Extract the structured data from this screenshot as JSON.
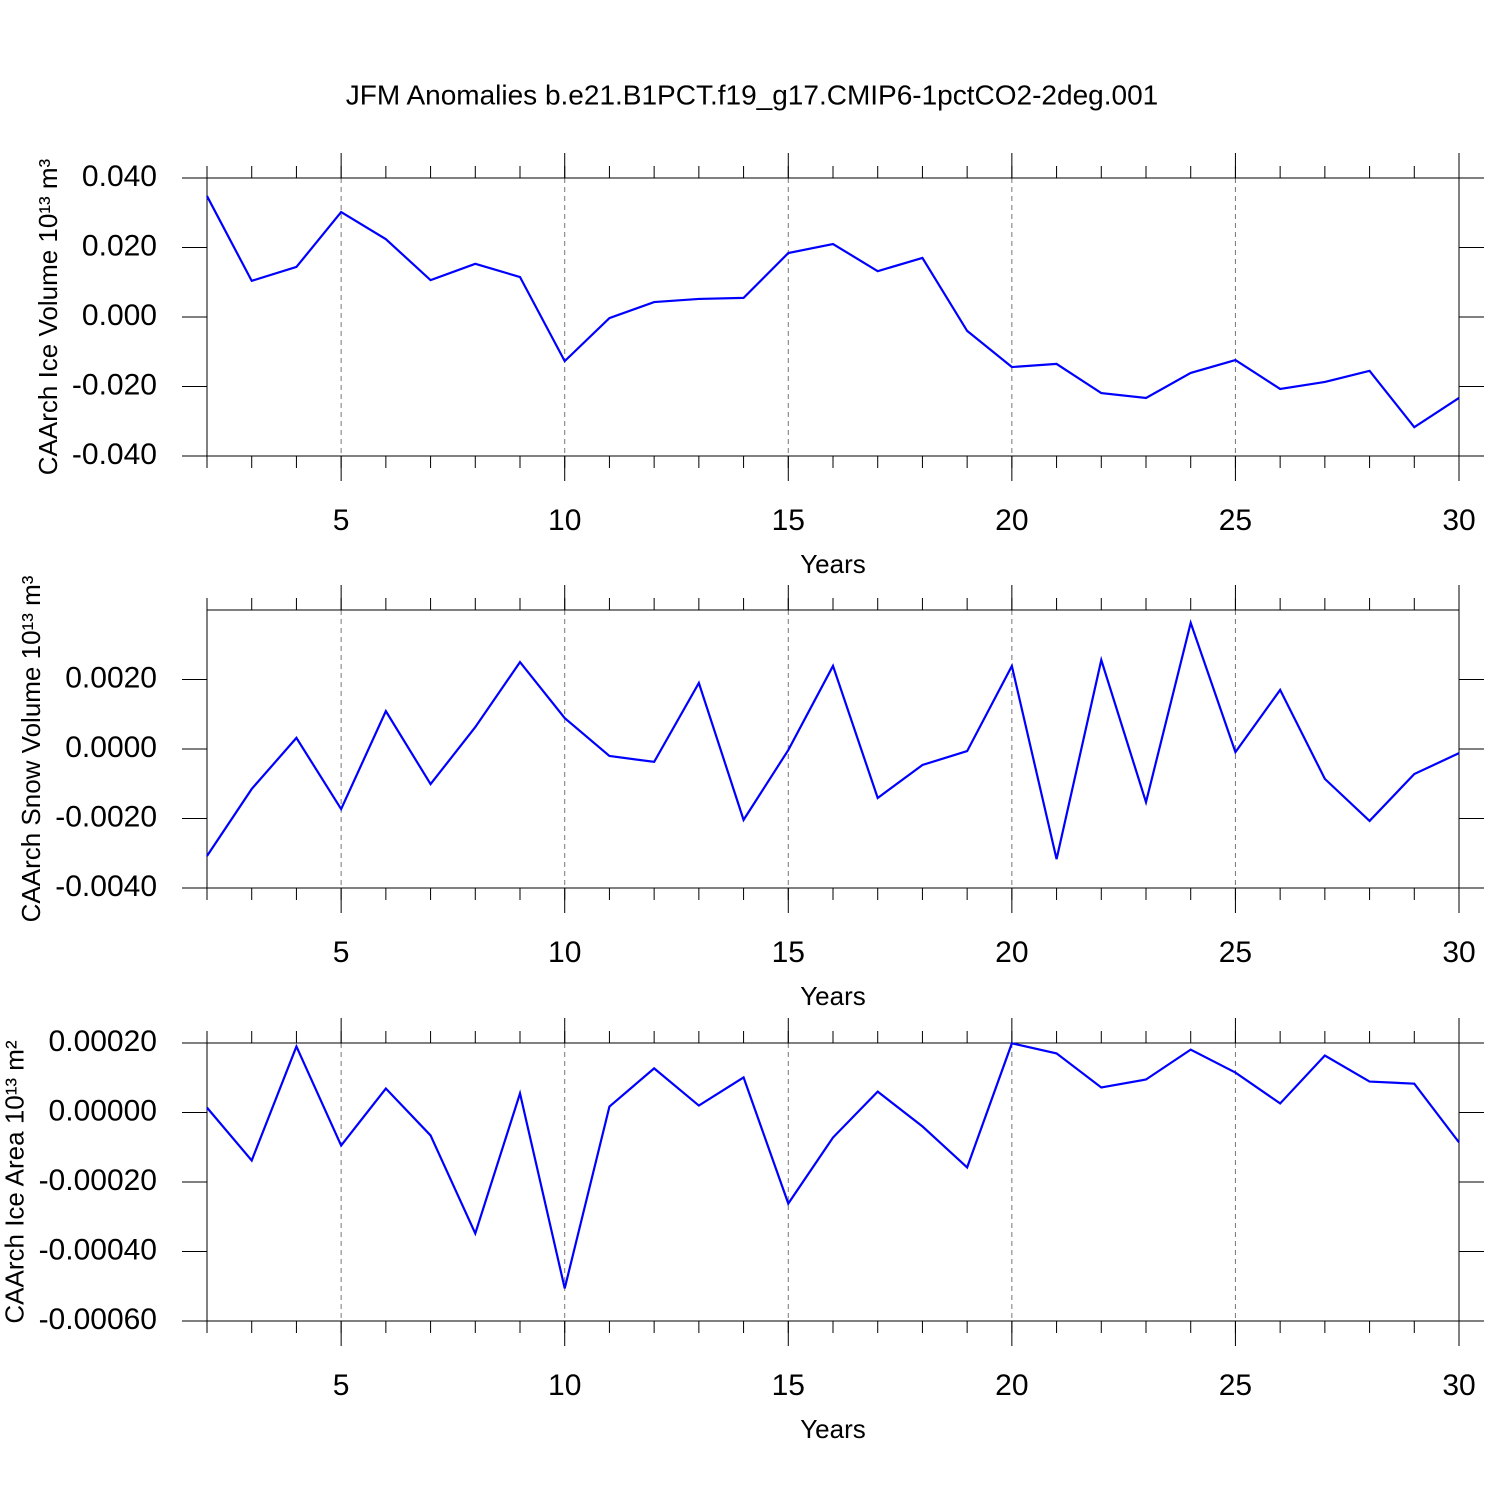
{
  "chart_data": [
    {
      "type": "line",
      "title": "JFM Anomalies b.e21.B1PCT.f19_g17.CMIP6-1pctCO2-2deg.001",
      "xlabel": "Years",
      "ylabel": "CAArch Ice Volume 10¹³ m³",
      "color": "#0000ff",
      "x": [
        2,
        3,
        4,
        5,
        6,
        7,
        8,
        9,
        10,
        11,
        12,
        13,
        14,
        15,
        16,
        17,
        18,
        19,
        20,
        21,
        22,
        23,
        24,
        25,
        26,
        27,
        28,
        29,
        30
      ],
      "values": [
        0.0348,
        0.0104,
        0.0144,
        0.0302,
        0.0224,
        0.0106,
        0.0153,
        0.0115,
        -0.0127,
        -0.0003,
        0.0043,
        0.0052,
        0.0055,
        0.0184,
        0.021,
        0.0132,
        0.017,
        -0.004,
        -0.0144,
        -0.0135,
        -0.0219,
        -0.0233,
        -0.0161,
        -0.0124,
        -0.0207,
        -0.0187,
        -0.0155,
        -0.0317,
        -0.0233
      ],
      "xlim": [
        2,
        30
      ],
      "xticks": [
        5,
        10,
        15,
        20,
        25,
        30
      ],
      "ylim": [
        -0.04,
        0.04
      ],
      "yticks": [
        {
          "value": -0.04,
          "label": "-0.040"
        },
        {
          "value": -0.02,
          "label": "-0.020"
        },
        {
          "value": 0,
          "label": "0.000"
        },
        {
          "value": 0.02,
          "label": "0.020"
        },
        {
          "value": 0.04,
          "label": "0.040"
        }
      ],
      "grid": true
    },
    {
      "type": "line",
      "xlabel": "Years",
      "ylabel": "CAArch Snow Volume 10¹³ m³",
      "color": "#0000ff",
      "x": [
        2,
        3,
        4,
        5,
        6,
        7,
        8,
        9,
        10,
        11,
        12,
        13,
        14,
        15,
        16,
        17,
        18,
        19,
        20,
        21,
        22,
        23,
        24,
        25,
        26,
        27,
        28,
        29,
        30
      ],
      "values": [
        -0.00308,
        -0.00115,
        0.00032,
        -0.00173,
        0.00109,
        -0.00101,
        0.00063,
        0.0025,
        0.00089,
        -0.0002,
        -0.00037,
        0.0019,
        -0.00204,
        -3e-05,
        0.00239,
        -0.00141,
        -0.00046,
        -6e-05,
        0.00239,
        -0.00317,
        0.00256,
        -0.00153,
        0.00363,
        -9e-05,
        0.0017,
        -0.00086,
        -0.00207,
        -0.00072,
        -0.00012
      ],
      "xlim": [
        2,
        30
      ],
      "xticks": [
        5,
        10,
        15,
        20,
        25,
        30
      ],
      "ylim": [
        -0.004,
        0.004
      ],
      "yticks": [
        {
          "value": -0.004,
          "label": "-0.0040"
        },
        {
          "value": -0.002,
          "label": "-0.0020"
        },
        {
          "value": 0,
          "label": "0.0000"
        },
        {
          "value": 0.002,
          "label": "0.0020"
        }
      ],
      "grid": true
    },
    {
      "type": "line",
      "xlabel": "Years",
      "ylabel": "CAArch Ice Area 10¹³ m²",
      "color": "#0000ff",
      "x": [
        2,
        3,
        4,
        5,
        6,
        7,
        8,
        9,
        10,
        11,
        12,
        13,
        14,
        15,
        16,
        17,
        18,
        19,
        20,
        21,
        22,
        23,
        24,
        25,
        26,
        27,
        28,
        29,
        30
      ],
      "values": [
        1.4e-05,
        -0.000138,
        0.00019,
        -9.5e-05,
        6.9e-05,
        -6.6e-05,
        -0.000348,
        5.5e-05,
        -0.000506,
        1.7e-05,
        0.000127,
        2e-05,
        0.000101,
        -0.000262,
        -7.2e-05,
        6e-05,
        -4e-05,
        -0.000158,
        0.000199,
        0.00017,
        7.2e-05,
        9.5e-05,
        0.000181,
        0.000115,
        2.6e-05,
        0.000164,
        8.9e-05,
        8.3e-05,
        -8.6e-05
      ],
      "xlim": [
        2,
        30
      ],
      "xticks": [
        5,
        10,
        15,
        20,
        25,
        30
      ],
      "ylim": [
        -0.0006,
        0.0002
      ],
      "yticks": [
        {
          "value": -0.0006,
          "label": "-0.00060"
        },
        {
          "value": -0.0004,
          "label": "-0.00040"
        },
        {
          "value": -0.0002,
          "label": "-0.00020"
        },
        {
          "value": 0,
          "label": "0.00000"
        },
        {
          "value": 0.0002,
          "label": "0.00020"
        }
      ],
      "grid": true
    }
  ]
}
